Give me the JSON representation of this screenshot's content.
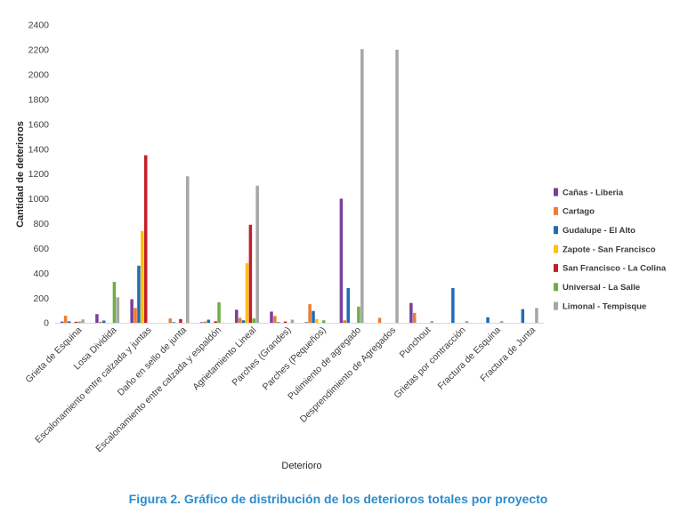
{
  "chart_data": {
    "type": "bar",
    "caption": "Figura 2. Gráfico de distribución de los deterioros totales por proyecto",
    "xlabel": "Deterioro",
    "ylabel": "Cantidad de deterioros",
    "ylim": [
      0,
      2400
    ],
    "yticks": [
      0,
      200,
      400,
      600,
      800,
      1000,
      1200,
      1400,
      1600,
      1800,
      2000,
      2200,
      2400
    ],
    "grid": false,
    "legend_position": "right",
    "categories": [
      "Grieta de Esquina",
      "Losa Dividida",
      "Escalonamiento entre calzada y juntas",
      "Daño en sello de junta",
      "Escalonamiento entre calzada y espaldón",
      "Agrietamiento Lineal",
      "Parches (Grandes)",
      "Parches (Pequeños)",
      "Pulimiento de agregado",
      "Desprendimiento de Agregados",
      "Punchout",
      "Grietas por contracción",
      "Fractura de Esquina",
      "Fractura de Junta"
    ],
    "series": [
      {
        "name": "Cañas - Liberia",
        "color": "#7a3f9d",
        "values": [
          10,
          70,
          190,
          0,
          5,
          105,
          90,
          5,
          1000,
          0,
          160,
          0,
          0,
          0
        ]
      },
      {
        "name": "Cartago",
        "color": "#ed7d31",
        "values": [
          57,
          8,
          120,
          35,
          10,
          40,
          55,
          150,
          20,
          40,
          80,
          0,
          0,
          0
        ]
      },
      {
        "name": "Gudalupe - El Alto",
        "color": "#1f6cb4",
        "values": [
          12,
          18,
          460,
          5,
          25,
          20,
          5,
          95,
          280,
          0,
          0,
          280,
          45,
          110
        ]
      },
      {
        "name": "Zapote - San Francisco",
        "color": "#ffc000",
        "values": [
          0,
          0,
          740,
          0,
          0,
          480,
          0,
          30,
          0,
          0,
          0,
          0,
          0,
          0
        ]
      },
      {
        "name": "San Francisco - La Colina",
        "color": "#c41e2a",
        "values": [
          8,
          0,
          1350,
          30,
          12,
          790,
          10,
          0,
          0,
          0,
          0,
          0,
          0,
          0
        ]
      },
      {
        "name": "Universal - La Salle",
        "color": "#70ad47",
        "values": [
          10,
          330,
          0,
          0,
          165,
          35,
          0,
          20,
          130,
          0,
          0,
          0,
          0,
          0
        ]
      },
      {
        "name": "Limonal - Tempisque",
        "color": "#a6a6a6",
        "values": [
          27,
          205,
          0,
          1180,
          0,
          1105,
          25,
          0,
          2205,
          2200,
          15,
          15,
          15,
          120
        ]
      }
    ]
  }
}
